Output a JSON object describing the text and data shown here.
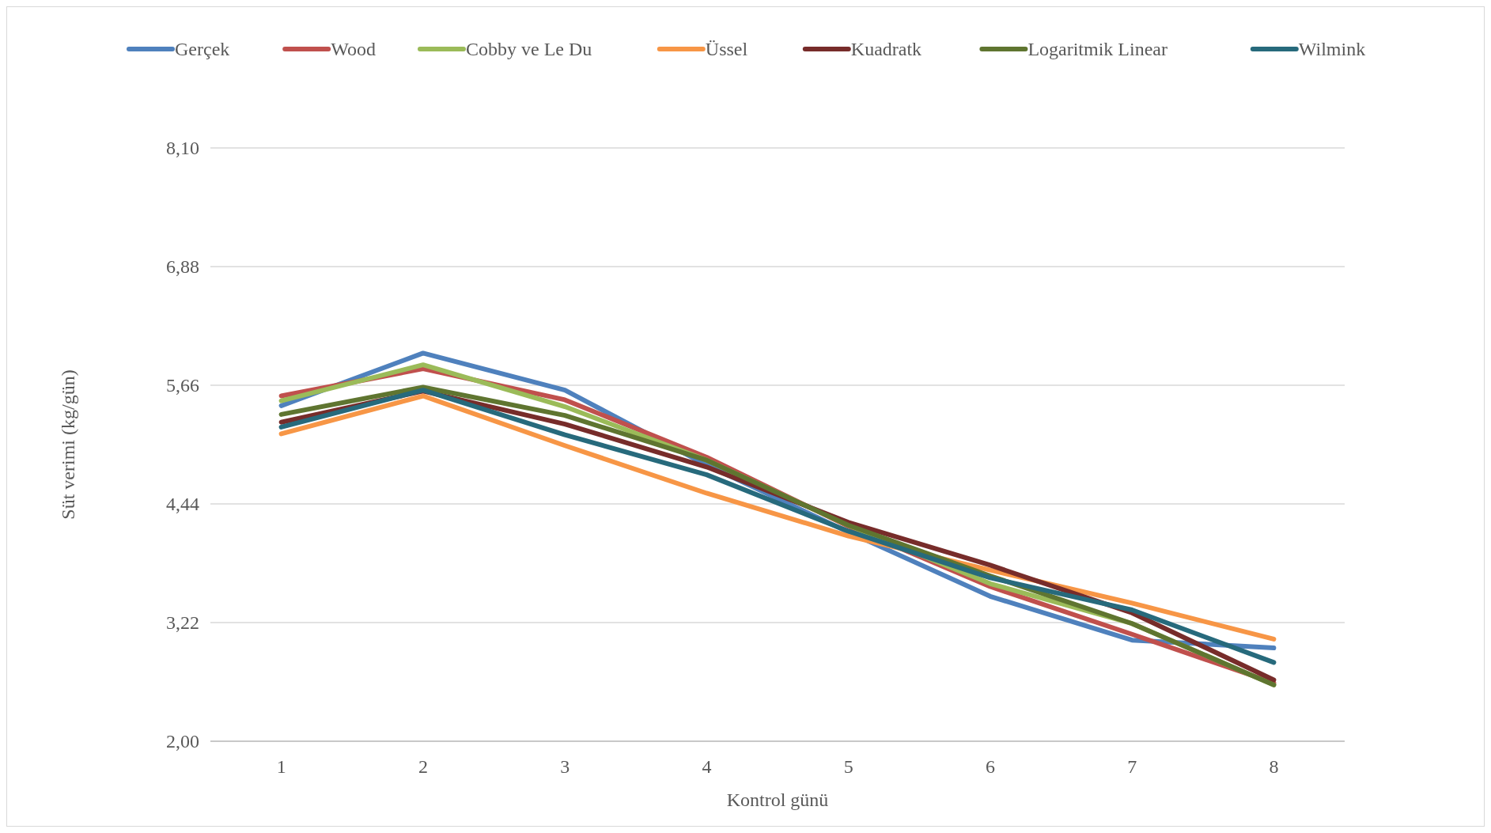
{
  "chart_data": {
    "type": "line",
    "xlabel": "Kontrol günü",
    "ylabel": "Süt verimi (kg/gün)",
    "categories": [
      "1",
      "2",
      "3",
      "4",
      "5",
      "6",
      "7",
      "8"
    ],
    "ylim": [
      2,
      8.1
    ],
    "yticks": [
      {
        "value": 2,
        "label": "2,00"
      },
      {
        "value": 3.22,
        "label": "3,22"
      },
      {
        "value": 4.44,
        "label": "4,44"
      },
      {
        "value": 5.66,
        "label": "5,66"
      },
      {
        "value": 6.88,
        "label": "6,88"
      },
      {
        "value": 8.1,
        "label": "8,10"
      }
    ],
    "grid": "y",
    "legend": "top",
    "marker": "none",
    "line_style": "solid",
    "series": [
      {
        "name": "Gerçek",
        "color": "#4f81bd",
        "values": [
          5.45,
          5.99,
          5.61,
          4.84,
          4.15,
          3.49,
          3.04,
          2.96
        ]
      },
      {
        "name": "Wood",
        "color": "#c0504d",
        "values": [
          5.55,
          5.83,
          5.51,
          4.92,
          4.21,
          3.59,
          3.1,
          2.6
        ]
      },
      {
        "name": "Cobby ve Le Du",
        "color": "#9bbb59",
        "values": [
          5.5,
          5.87,
          5.44,
          4.89,
          4.22,
          3.62,
          3.21,
          2.58
        ]
      },
      {
        "name": "Üssel",
        "color": "#f79646",
        "values": [
          5.16,
          5.55,
          5.04,
          4.55,
          4.11,
          3.76,
          3.42,
          3.05
        ]
      },
      {
        "name": "Kuadratk",
        "color": "#772c2a",
        "values": [
          5.28,
          5.6,
          5.26,
          4.82,
          4.25,
          3.81,
          3.32,
          2.63
        ]
      },
      {
        "name": "Logaritmik Linear",
        "color": "#5f7530",
        "values": [
          5.36,
          5.64,
          5.35,
          4.89,
          4.22,
          3.7,
          3.21,
          2.58
        ]
      },
      {
        "name": "Wilmink",
        "color": "#276a7c",
        "values": [
          5.23,
          5.61,
          5.15,
          4.74,
          4.16,
          3.68,
          3.35,
          2.81
        ]
      }
    ]
  }
}
